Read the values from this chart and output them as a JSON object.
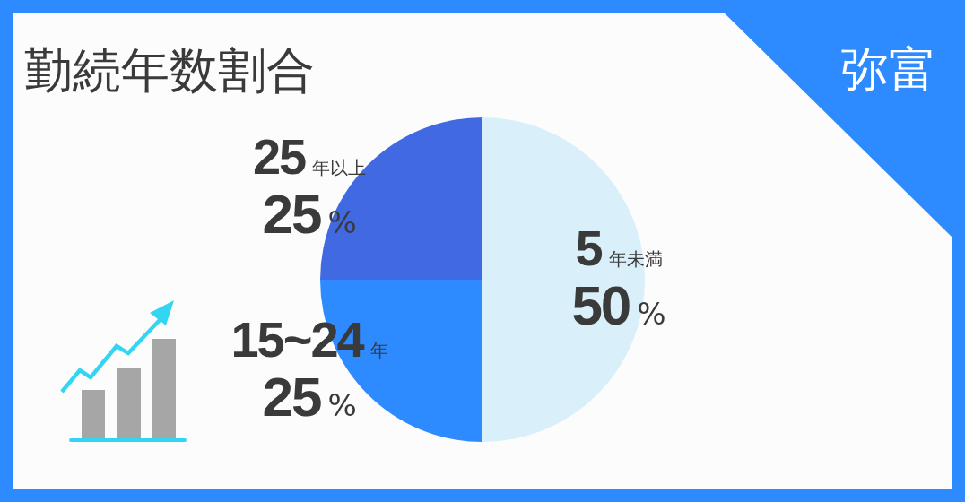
{
  "chart_data": {
    "type": "pie",
    "title": "勤続年数割合",
    "categories": [
      "5年未満",
      "15~24年",
      "25年以上"
    ],
    "values": [
      50,
      25,
      25
    ],
    "colors": [
      "#d9eff9",
      "#2e8bff",
      "#4169e1"
    ],
    "value_labels": [
      "50%",
      "25%",
      "25%"
    ],
    "annotations": [
      "弥富"
    ]
  }
}
